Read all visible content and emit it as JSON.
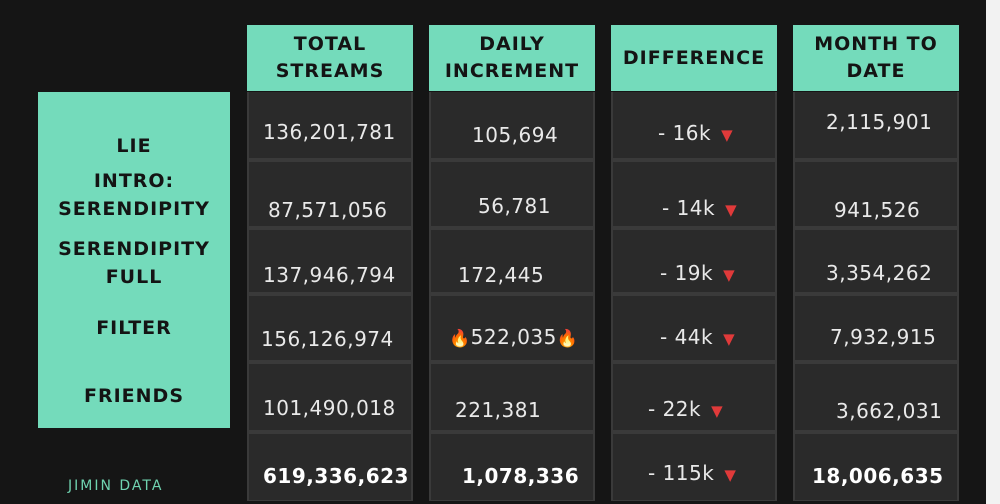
{
  "headers": {
    "total_line1": "TOTAL",
    "total_line2": "STREAMS",
    "daily_line1": "DAILY",
    "daily_line2": "INCREMENT",
    "difference": "DIFFERENCE",
    "mtd_line1": "MONTH TO",
    "mtd_line2": "DATE"
  },
  "rows": [
    {
      "label": "LIE",
      "total": "136,201,781",
      "daily": "105,694",
      "difference": "- 16k",
      "mtd": "2,115,901"
    },
    {
      "label_line1": "INTRO:",
      "label_line2": "SERENDIPITY",
      "total": "87,571,056",
      "daily": "56,781",
      "difference": "- 14k",
      "mtd": "941,526"
    },
    {
      "label_line1": "SERENDIPITY",
      "label_line2": "FULL",
      "total": "137,946,794",
      "daily": "172,445",
      "difference": "- 19k",
      "mtd": "3,354,262"
    },
    {
      "label": "FILTER",
      "total": "156,126,974",
      "daily": "522,035",
      "difference": "- 44k",
      "mtd": "7,932,915"
    },
    {
      "label": "FRIENDS",
      "total": "101,490,018",
      "daily": "221,381",
      "difference": "- 22k",
      "mtd": "3,662,031"
    }
  ],
  "totals": {
    "total": "619,336,623",
    "daily": "1,078,336",
    "difference": "- 115k",
    "mtd": "18,006,635"
  },
  "footer": "JIMIN DATA",
  "glyphs": {
    "down_arrow": "▼",
    "fire": "🔥"
  },
  "colors": {
    "accent": "#74dbbb",
    "background": "#151515",
    "down": "#e03a3a"
  }
}
